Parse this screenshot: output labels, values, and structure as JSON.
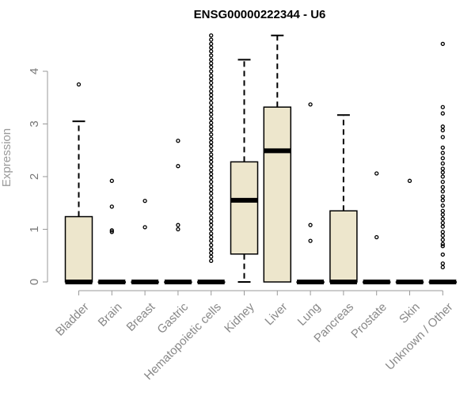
{
  "chart_data": {
    "type": "box",
    "title": "ENSG00000222344 - U6",
    "ylabel": "Expression",
    "xlabel": "",
    "ylim": [
      0,
      4.7
    ],
    "yticks": [
      0,
      1,
      2,
      3,
      4
    ],
    "grid": false,
    "colors": {
      "box_fill": "#ede6cc",
      "stroke": "#000000",
      "axis": "#999999",
      "tick_text": "#777777"
    },
    "categories": [
      "Bladder",
      "Brain",
      "Breast",
      "Gastric",
      "Hematopoietic cells",
      "Kidney",
      "Liver",
      "Lung",
      "Pancreas",
      "Prostate",
      "Skin",
      "Unknown / Other"
    ],
    "boxes": [
      {
        "category": "Bladder",
        "whisker_low": 0,
        "q1": 0,
        "median": 0,
        "q3": 1.24,
        "whisker_high": 3.05,
        "outliers": [
          3.75
        ]
      },
      {
        "category": "Brain",
        "whisker_low": 0,
        "q1": 0,
        "median": 0,
        "q3": 0,
        "whisker_high": 0,
        "outliers": [
          0.95,
          0.98,
          1.43,
          1.92
        ]
      },
      {
        "category": "Breast",
        "whisker_low": 0,
        "q1": 0,
        "median": 0,
        "q3": 0,
        "whisker_high": 0,
        "outliers": [
          1.04,
          1.54
        ]
      },
      {
        "category": "Gastric",
        "whisker_low": 0,
        "q1": 0,
        "median": 0,
        "q3": 0,
        "whisker_high": 0,
        "outliers": [
          1.0,
          1.08,
          2.2,
          2.68
        ]
      },
      {
        "category": "Hematopoietic cells",
        "whisker_low": 0,
        "q1": 0,
        "median": 0,
        "q3": 0,
        "whisker_high": 0,
        "outliers": [
          0.4,
          0.48,
          0.55,
          0.62,
          0.7,
          0.78,
          0.85,
          0.92,
          1.0,
          1.08,
          1.15,
          1.22,
          1.3,
          1.38,
          1.45,
          1.52,
          1.6,
          1.68,
          1.75,
          1.82,
          1.9,
          1.98,
          2.05,
          2.12,
          2.2,
          2.28,
          2.35,
          2.42,
          2.5,
          2.58,
          2.65,
          2.72,
          2.8,
          2.88,
          2.95,
          3.02,
          3.1,
          3.18,
          3.25,
          3.32,
          3.4,
          3.48,
          3.55,
          3.62,
          3.7,
          3.78,
          3.85,
          3.92,
          4.0,
          4.08,
          4.15,
          4.22,
          4.3,
          4.38,
          4.45,
          4.52,
          4.6,
          4.68
        ]
      },
      {
        "category": "Kidney",
        "whisker_low": 0,
        "q1": 0.53,
        "median": 1.55,
        "q3": 2.28,
        "whisker_high": 4.22,
        "outliers": []
      },
      {
        "category": "Liver",
        "whisker_low": 0,
        "q1": 0,
        "median": 2.49,
        "q3": 3.32,
        "whisker_high": 4.68,
        "outliers": []
      },
      {
        "category": "Lung",
        "whisker_low": 0,
        "q1": 0,
        "median": 0,
        "q3": 0,
        "whisker_high": 0,
        "outliers": [
          0.78,
          1.08,
          3.37
        ]
      },
      {
        "category": "Pancreas",
        "whisker_low": 0,
        "q1": 0,
        "median": 0,
        "q3": 1.35,
        "whisker_high": 3.17,
        "outliers": []
      },
      {
        "category": "Prostate",
        "whisker_low": 0,
        "q1": 0,
        "median": 0,
        "q3": 0,
        "whisker_high": 0,
        "outliers": [
          0.85,
          2.06
        ]
      },
      {
        "category": "Skin",
        "whisker_low": 0,
        "q1": 0,
        "median": 0,
        "q3": 0,
        "whisker_high": 0,
        "outliers": [
          1.92
        ]
      },
      {
        "category": "Unknown / Other",
        "whisker_low": 0,
        "q1": 0,
        "median": 0,
        "q3": 0,
        "whisker_high": 0,
        "outliers": [
          0.28,
          0.35,
          0.52,
          0.68,
          0.72,
          0.8,
          0.88,
          0.95,
          1.05,
          1.12,
          1.2,
          1.28,
          1.35,
          1.45,
          1.55,
          1.62,
          1.72,
          1.8,
          1.9,
          2.0,
          2.08,
          2.15,
          2.25,
          2.35,
          2.45,
          2.55,
          2.75,
          2.88,
          2.95,
          3.2,
          3.32,
          4.52
        ]
      }
    ]
  }
}
